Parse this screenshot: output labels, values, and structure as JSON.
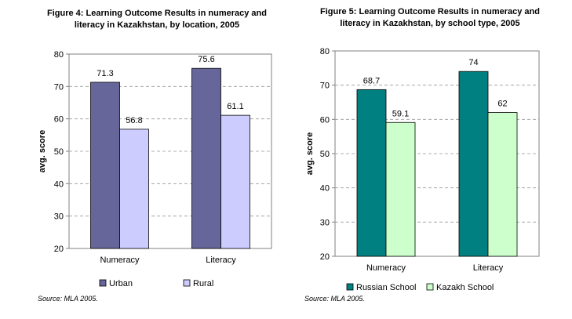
{
  "chart_data": [
    {
      "type": "bar",
      "title": "Figure 4: Learning Outcome Results in numeracy and literacy in Kazakhstan, by location, 2005",
      "ylabel": "avg. score",
      "categories": [
        "Numeracy",
        "Literacy"
      ],
      "series": [
        {
          "name": "Urban",
          "values": [
            71.3,
            75.6
          ],
          "color": "#66669a"
        },
        {
          "name": "Rural",
          "values": [
            56.8,
            61.1
          ],
          "color": "#ccccff"
        }
      ],
      "ylim": [
        20,
        80
      ],
      "yticks": [
        20,
        30,
        40,
        50,
        60,
        70,
        80
      ],
      "grid": true,
      "legend": "bottom",
      "source": "Source: MLA 2005."
    },
    {
      "type": "bar",
      "title": "Figure 5: Learning Outcome Results in numeracy and literacy in Kazakhstan, by school type, 2005",
      "ylabel": "avg. score",
      "categories": [
        "Numeracy",
        "Literacy"
      ],
      "series": [
        {
          "name": "Russian School",
          "values": [
            68.7,
            74
          ],
          "color": "#008080"
        },
        {
          "name": "Kazakh School",
          "values": [
            59.1,
            62
          ],
          "color": "#ccffcc"
        }
      ],
      "ylim": [
        20,
        80
      ],
      "yticks": [
        20,
        30,
        40,
        50,
        60,
        70,
        80
      ],
      "grid": true,
      "legend": "bottom",
      "source": "Source: MLA 2005."
    }
  ]
}
